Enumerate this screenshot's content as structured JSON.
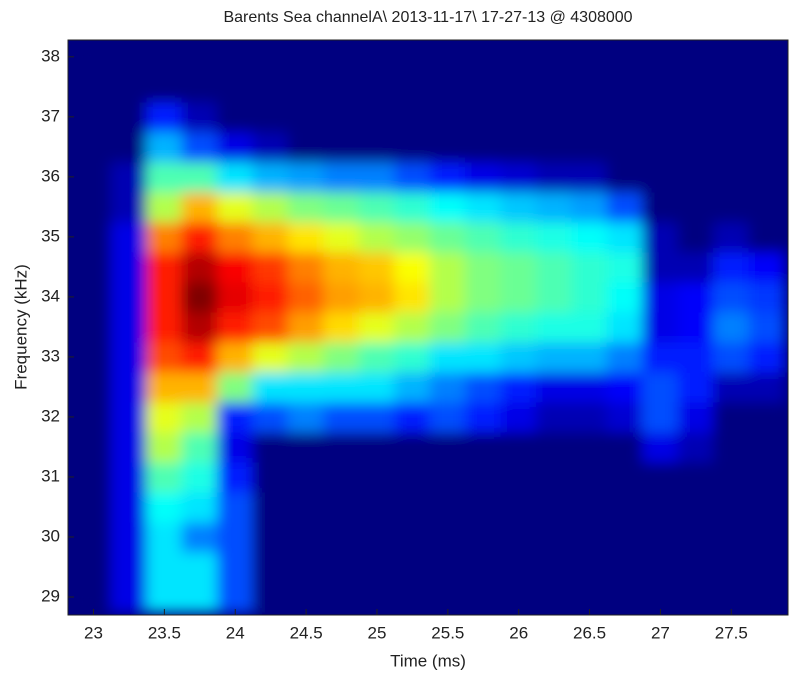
{
  "chart_data": {
    "type": "heatmap",
    "title": "Barents Sea channelA\\ 2013-11-17\\ 17-27-13 @ 4308000",
    "xlabel": "Time (ms)",
    "ylabel": "Frequency (kHz)",
    "colormap": "jet",
    "xlim": [
      22.82,
      27.9
    ],
    "ylim": [
      28.7,
      38.28
    ],
    "xticks": [
      23,
      23.5,
      24,
      24.5,
      25,
      25.5,
      26,
      26.5,
      27,
      27.5
    ],
    "yticks": [
      29,
      30,
      31,
      32,
      33,
      34,
      35,
      36,
      37,
      38
    ],
    "x": [
      23,
      23.25,
      23.5,
      23.75,
      24,
      24.25,
      24.5,
      24.75,
      25,
      25.25,
      25.5,
      25.75,
      26,
      26.25,
      26.5,
      26.75,
      27,
      27.25,
      27.5,
      27.75
    ],
    "y": [
      29,
      29.5,
      30,
      30.5,
      31,
      31.5,
      32,
      32.5,
      33,
      33.5,
      34,
      34.5,
      35,
      35.5,
      36,
      36.5,
      37,
      37.5,
      38
    ],
    "z": [
      [
        0,
        0.1,
        0.35,
        0.35,
        0.2,
        0,
        0,
        0,
        0,
        0,
        0,
        0,
        0,
        0,
        0,
        0,
        0,
        0,
        0,
        0
      ],
      [
        0,
        0.1,
        0.35,
        0.35,
        0.2,
        0,
        0,
        0,
        0,
        0,
        0,
        0,
        0,
        0,
        0,
        0,
        0,
        0,
        0,
        0
      ],
      [
        0,
        0.1,
        0.35,
        0.25,
        0.2,
        0,
        0,
        0,
        0,
        0,
        0,
        0,
        0,
        0,
        0,
        0,
        0,
        0,
        0,
        0
      ],
      [
        0,
        0.1,
        0.38,
        0.35,
        0.2,
        0,
        0,
        0,
        0,
        0,
        0,
        0,
        0,
        0,
        0,
        0,
        0,
        0,
        0,
        0
      ],
      [
        0,
        0.1,
        0.45,
        0.4,
        0.15,
        0,
        0,
        0,
        0,
        0,
        0,
        0,
        0,
        0,
        0,
        0,
        0,
        0,
        0,
        0
      ],
      [
        0,
        0.1,
        0.55,
        0.45,
        0.1,
        0,
        0,
        0,
        0,
        0,
        0,
        0,
        0,
        0,
        0,
        0,
        0.1,
        0.05,
        0,
        0
      ],
      [
        0,
        0.1,
        0.6,
        0.55,
        0.15,
        0.2,
        0.25,
        0.2,
        0.2,
        0.15,
        0.2,
        0.15,
        0.1,
        0.05,
        0.05,
        0.08,
        0.2,
        0.1,
        0,
        0
      ],
      [
        0,
        0.1,
        0.7,
        0.7,
        0.5,
        0.35,
        0.35,
        0.35,
        0.35,
        0.3,
        0.25,
        0.2,
        0.15,
        0.1,
        0.1,
        0.12,
        0.2,
        0.15,
        0.05,
        0.05
      ],
      [
        0,
        0.1,
        0.8,
        0.85,
        0.7,
        0.6,
        0.55,
        0.5,
        0.45,
        0.42,
        0.35,
        0.35,
        0.32,
        0.3,
        0.3,
        0.25,
        0.15,
        0.15,
        0.2,
        0.15
      ],
      [
        0,
        0.1,
        0.85,
        0.95,
        0.85,
        0.8,
        0.72,
        0.66,
        0.6,
        0.55,
        0.5,
        0.45,
        0.42,
        0.4,
        0.4,
        0.35,
        0.1,
        0.12,
        0.25,
        0.2
      ],
      [
        0,
        0.1,
        0.85,
        1,
        0.9,
        0.85,
        0.78,
        0.72,
        0.7,
        0.65,
        0.55,
        0.5,
        0.48,
        0.45,
        0.42,
        0.38,
        0.1,
        0.12,
        0.2,
        0.18
      ],
      [
        0,
        0.1,
        0.85,
        0.95,
        0.88,
        0.82,
        0.75,
        0.7,
        0.68,
        0.62,
        0.55,
        0.5,
        0.48,
        0.45,
        0.42,
        0.4,
        0.05,
        0.05,
        0.15,
        0.12
      ],
      [
        0,
        0.1,
        0.75,
        0.85,
        0.75,
        0.7,
        0.65,
        0.6,
        0.55,
        0.52,
        0.48,
        0.45,
        0.42,
        0.4,
        0.38,
        0.35,
        0.05,
        0,
        0.05,
        0
      ],
      [
        0,
        0.05,
        0.55,
        0.7,
        0.6,
        0.55,
        0.5,
        0.48,
        0.45,
        0.42,
        0.38,
        0.35,
        0.32,
        0.3,
        0.28,
        0.2,
        0,
        0,
        0,
        0
      ],
      [
        0,
        0.05,
        0.45,
        0.45,
        0.35,
        0.3,
        0.28,
        0.25,
        0.25,
        0.2,
        0.15,
        0.1,
        0.08,
        0.05,
        0.05,
        0,
        0,
        0,
        0,
        0
      ],
      [
        0,
        0,
        0.3,
        0.2,
        0.1,
        0.05,
        0,
        0,
        0,
        0,
        0,
        0,
        0,
        0,
        0,
        0,
        0,
        0,
        0,
        0
      ],
      [
        0,
        0,
        0.15,
        0.05,
        0,
        0,
        0,
        0,
        0,
        0,
        0,
        0,
        0,
        0,
        0,
        0,
        0,
        0,
        0,
        0
      ],
      [
        0,
        0,
        0,
        0,
        0,
        0,
        0,
        0,
        0,
        0,
        0,
        0,
        0,
        0,
        0,
        0,
        0,
        0,
        0,
        0
      ],
      [
        0,
        0,
        0,
        0,
        0,
        0,
        0,
        0,
        0,
        0,
        0,
        0,
        0,
        0,
        0,
        0,
        0,
        0,
        0,
        0
      ]
    ]
  }
}
